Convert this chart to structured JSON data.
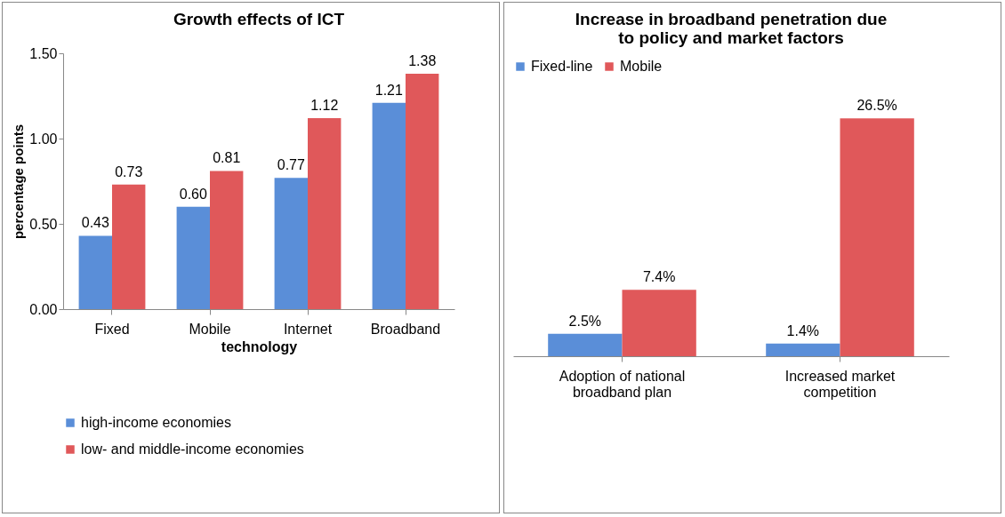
{
  "chart_data": [
    {
      "type": "bar",
      "title": "Growth effects of ICT",
      "xlabel": "technology",
      "ylabel": "percentage points",
      "categories": [
        "Fixed",
        "Mobile",
        "Internet",
        "Broadband"
      ],
      "series": [
        {
          "name": "high-income economies",
          "color": "#5a8ed8",
          "values": [
            0.43,
            0.6,
            0.77,
            1.21
          ],
          "value_labels": [
            "0.43",
            "0.60",
            "0.77",
            "1.21"
          ]
        },
        {
          "name": "low- and middle-income economies",
          "color": "#e0585a",
          "values": [
            0.73,
            0.81,
            1.12,
            1.38
          ],
          "value_labels": [
            "0.73",
            "0.81",
            "1.12",
            "1.38"
          ]
        }
      ],
      "ylim": [
        0,
        1.5
      ],
      "yticks": [
        {
          "value": 0,
          "label": "0.00"
        },
        {
          "value": 0.5,
          "label": "0.50"
        },
        {
          "value": 1,
          "label": "1.00"
        },
        {
          "value": 1.5,
          "label": "1.50"
        }
      ],
      "grid": false,
      "legend": "bottom"
    },
    {
      "type": "bar",
      "title": "Increase in broadband penetration due to policy and market factors",
      "categories": [
        "Adoption of national broadband plan",
        "Increased market competition"
      ],
      "series": [
        {
          "name": "Fixed-line",
          "color": "#5a8ed8",
          "values": [
            2.5,
            1.4
          ],
          "value_labels": [
            "2.5%",
            "1.4%"
          ]
        },
        {
          "name": "Mobile",
          "color": "#e0585a",
          "values": [
            7.4,
            26.5
          ],
          "value_labels": [
            "7.4%",
            "26.5%"
          ]
        }
      ],
      "grid": false,
      "legend": "top"
    }
  ]
}
